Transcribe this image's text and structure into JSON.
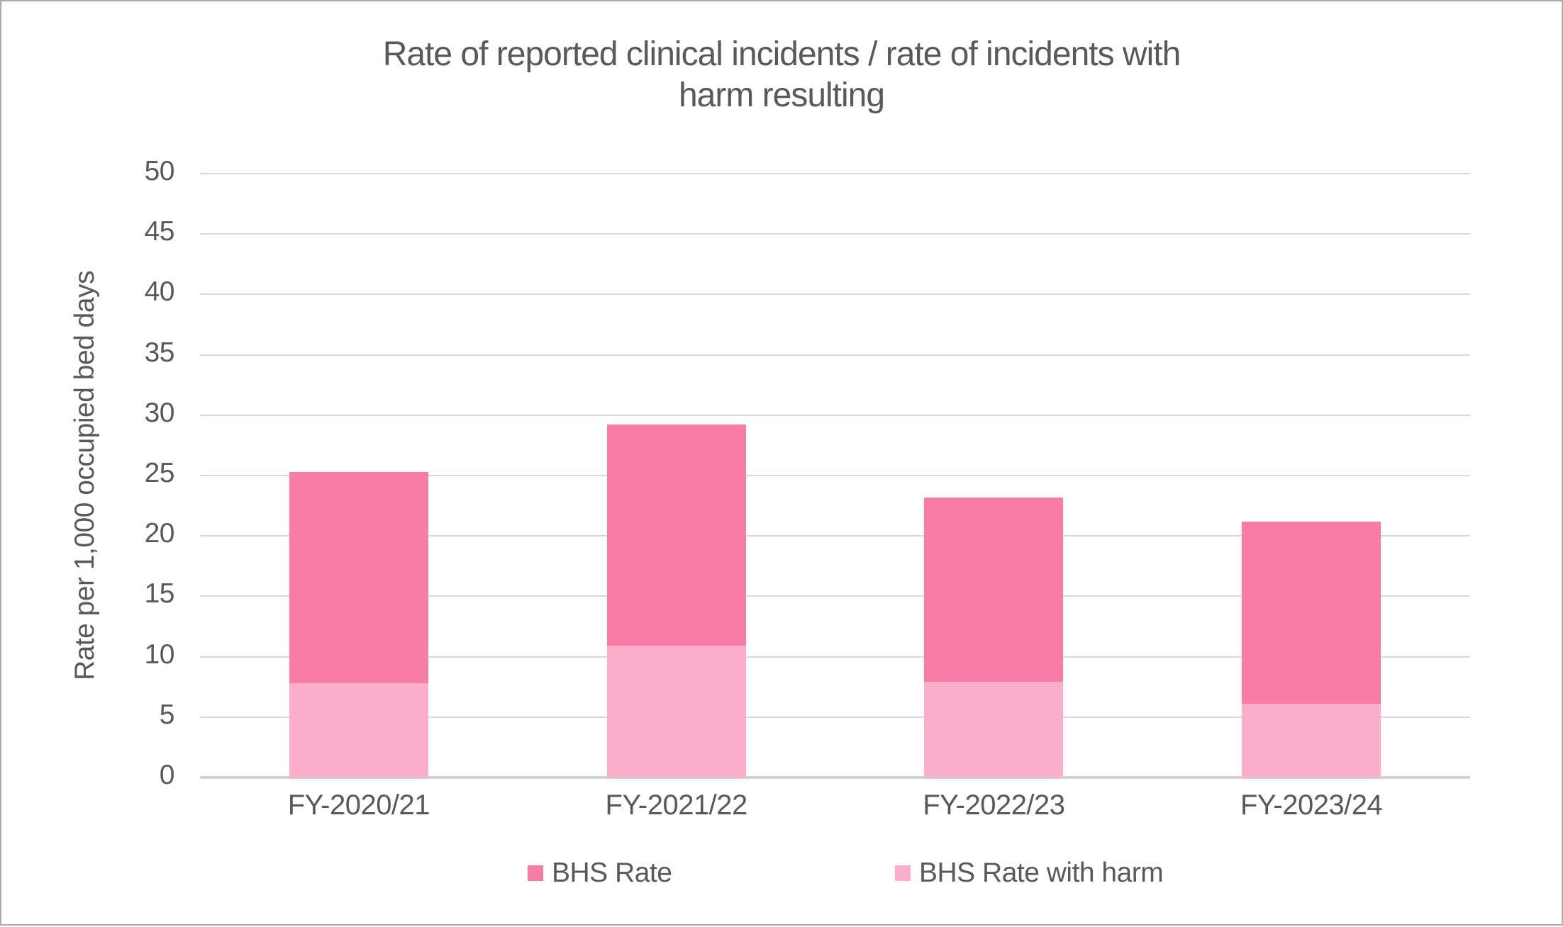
{
  "chart_data": {
    "type": "bar",
    "subtype": "overlapped-stack",
    "title": "Rate of reported clinical incidents / rate of incidents with harm resulting",
    "title_lines": [
      "Rate of reported clinical incidents / rate of incidents with",
      "harm resulting"
    ],
    "xlabel": "",
    "ylabel": "Rate per 1,000 occupied bed days",
    "ylim": [
      0,
      50
    ],
    "ytick_step": 5,
    "yticks": [
      0,
      5,
      10,
      15,
      20,
      25,
      30,
      35,
      40,
      45,
      50
    ],
    "grid": true,
    "legend_position": "bottom",
    "categories": [
      "FY-2020/21",
      "FY-2021/22",
      "FY-2022/23",
      "FY-2023/24"
    ],
    "series": [
      {
        "name": "BHS Rate",
        "color": "#F77CA6",
        "values": [
          25.3,
          29.2,
          23.2,
          21.2
        ]
      },
      {
        "name": "BHS Rate with harm",
        "color": "#FAAFCC",
        "values": [
          7.8,
          10.9,
          7.9,
          6.1
        ]
      }
    ]
  },
  "colors": {
    "text": "#595959",
    "gridline": "#D9D9D9",
    "axis_line": "#D2D2D2",
    "frame_border": "#ABABAB",
    "background": "#FFFFFF"
  }
}
